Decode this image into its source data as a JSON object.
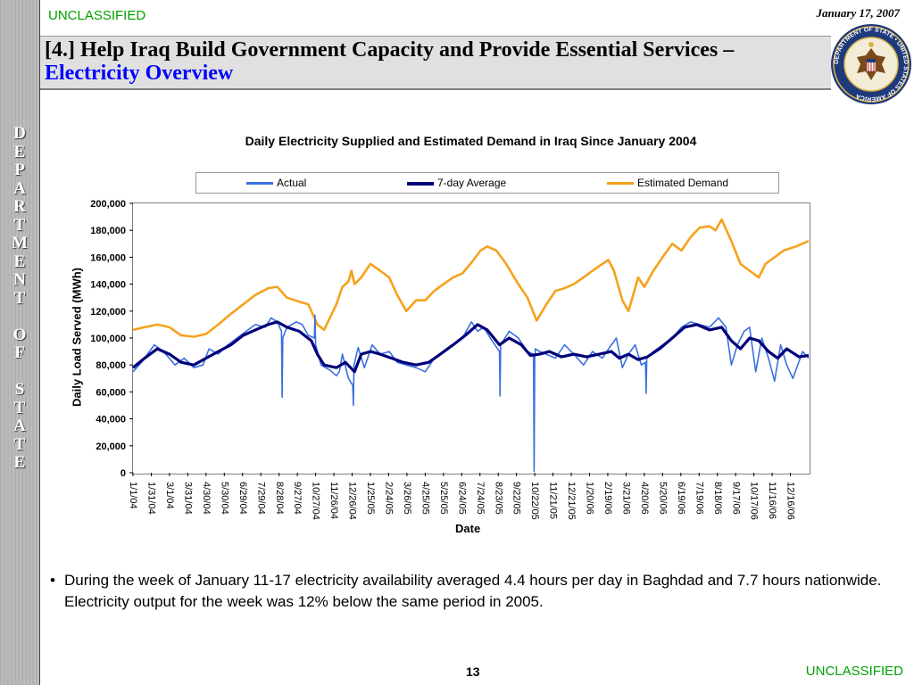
{
  "header": {
    "classification": "UNCLASSIFIED",
    "date": "January 17, 2007",
    "title_main": "[4.] Help Iraq Build Government Capacity and Provide Essential Services – ",
    "title_sub": "Electricity Overview"
  },
  "sidebar": {
    "letters": [
      "D",
      "E",
      "P",
      "A",
      "R",
      "T",
      "M",
      "E",
      "N",
      "T",
      "",
      "O",
      "F",
      "",
      "S",
      "T",
      "A",
      "T",
      "E"
    ]
  },
  "seal": {
    "ring_text": "DEPARTMENT OF STATE • UNITED STATES OF AMERICA"
  },
  "bullet": {
    "marker": "•",
    "text": "During the week of January 11-17 electricity availability averaged 4.4 hours per day in Baghdad and 7.7 hours nationwide.  Electricity output for the week was 12% below the same period in 2005."
  },
  "footer": {
    "page_number": "13",
    "classification": "UNCLASSIFIED"
  },
  "colors": {
    "actual": "#3b6fe0",
    "avg7": "#00007a",
    "demand": "#f5a21d",
    "classification": "#00a000",
    "title_sub": "#0000ff"
  },
  "chart_data": {
    "type": "line",
    "title": "Daily Electricity Supplied and Estimated Demand in Iraq Since January 2004",
    "xlabel": "Date",
    "ylabel": "Daily Load Served (MWh)",
    "ylim": [
      0,
      200000
    ],
    "yticks": [
      "0",
      "20,000",
      "40,000",
      "60,000",
      "80,000",
      "100,000",
      "120,000",
      "140,000",
      "160,000",
      "180,000",
      "200,000"
    ],
    "ytick_values": [
      0,
      20000,
      40000,
      60000,
      80000,
      100000,
      120000,
      140000,
      160000,
      180000,
      200000
    ],
    "x_start": "2004-01-01",
    "x_end": "2007-01-15",
    "xticks": [
      "1/1/04",
      "1/31/04",
      "3/1/04",
      "3/31/04",
      "4/30/04",
      "5/30/04",
      "6/29/04",
      "7/29/04",
      "8/28/04",
      "9/27/04",
      "10/27/04",
      "11/26/04",
      "12/26/04",
      "1/25/05",
      "2/24/05",
      "3/26/05",
      "4/25/05",
      "5/25/05",
      "6/24/05",
      "7/24/05",
      "8/23/05",
      "9/22/05",
      "10/22/05",
      "11/21/05",
      "12/21/05",
      "1/20/06",
      "2/19/06",
      "3/21/06",
      "4/20/06",
      "5/20/06",
      "6/19/06",
      "7/19/06",
      "8/18/06",
      "9/17/06",
      "10/17/06",
      "11/16/06",
      "12/16/06"
    ],
    "xtick_dates": [
      "2004-01-01",
      "2004-01-31",
      "2004-03-01",
      "2004-03-31",
      "2004-04-30",
      "2004-05-30",
      "2004-06-29",
      "2004-07-29",
      "2004-08-28",
      "2004-09-27",
      "2004-10-27",
      "2004-11-26",
      "2004-12-26",
      "2005-01-25",
      "2005-02-24",
      "2005-03-26",
      "2005-04-25",
      "2005-05-25",
      "2005-06-24",
      "2005-07-24",
      "2005-08-23",
      "2005-09-22",
      "2005-10-22",
      "2005-11-21",
      "2005-12-21",
      "2006-01-20",
      "2006-02-19",
      "2006-03-21",
      "2006-04-20",
      "2006-05-20",
      "2006-06-19",
      "2006-07-19",
      "2006-08-18",
      "2006-09-17",
      "2006-10-17",
      "2006-11-16",
      "2006-12-16"
    ],
    "grid": false,
    "legend": "top",
    "series": [
      {
        "name": "Actual",
        "color": "#3b6fe0",
        "x": [
          "2004-01-01",
          "2004-01-15",
          "2004-02-05",
          "2004-02-20",
          "2004-03-10",
          "2004-03-25",
          "2004-04-10",
          "2004-04-25",
          "2004-05-05",
          "2004-05-20",
          "2004-06-05",
          "2004-06-20",
          "2004-07-05",
          "2004-07-20",
          "2004-08-05",
          "2004-08-15",
          "2004-08-25",
          "2004-09-01",
          "2004-09-02",
          "2004-09-03",
          "2004-09-10",
          "2004-09-25",
          "2004-10-05",
          "2004-10-15",
          "2004-10-25",
          "2004-10-26",
          "2004-10-27",
          "2004-11-05",
          "2004-11-20",
          "2004-11-30",
          "2004-12-05",
          "2004-12-10",
          "2004-12-20",
          "2004-12-27",
          "2004-12-28",
          "2004-12-29",
          "2005-01-05",
          "2005-01-15",
          "2005-01-28",
          "2005-02-10",
          "2005-02-25",
          "2005-03-10",
          "2005-03-25",
          "2005-04-10",
          "2005-04-25",
          "2005-05-10",
          "2005-05-25",
          "2005-06-10",
          "2005-06-25",
          "2005-07-10",
          "2005-07-20",
          "2005-07-30",
          "2005-08-10",
          "2005-08-25",
          "2005-08-26",
          "2005-08-27",
          "2005-09-10",
          "2005-09-25",
          "2005-10-10",
          "2005-10-20",
          "2005-10-21",
          "2005-10-22",
          "2005-10-23",
          "2005-10-30",
          "2005-11-10",
          "2005-11-25",
          "2005-12-10",
          "2005-12-25",
          "2006-01-10",
          "2006-01-25",
          "2006-02-10",
          "2006-02-25",
          "2006-03-05",
          "2006-03-15",
          "2006-03-25",
          "2006-04-05",
          "2006-04-15",
          "2006-04-22",
          "2006-04-23",
          "2006-04-24",
          "2006-05-05",
          "2006-05-20",
          "2006-06-05",
          "2006-06-20",
          "2006-07-05",
          "2006-07-20",
          "2006-08-05",
          "2006-08-20",
          "2006-09-01",
          "2006-09-10",
          "2006-09-20",
          "2006-10-01",
          "2006-10-10",
          "2006-10-20",
          "2006-10-30",
          "2006-11-10",
          "2006-11-20",
          "2006-11-30",
          "2006-12-10",
          "2006-12-20",
          "2007-01-05",
          "2007-01-15"
        ],
        "values": [
          75000,
          82000,
          95000,
          90000,
          80000,
          85000,
          78000,
          80000,
          92000,
          88000,
          95000,
          100000,
          105000,
          110000,
          108000,
          115000,
          112000,
          105000,
          56000,
          100000,
          108000,
          112000,
          110000,
          102000,
          100000,
          117000,
          95000,
          80000,
          76000,
          72000,
          75000,
          88000,
          70000,
          65000,
          50000,
          80000,
          93000,
          78000,
          95000,
          88000,
          90000,
          82000,
          80000,
          78000,
          75000,
          85000,
          90000,
          95000,
          100000,
          112000,
          105000,
          108000,
          100000,
          90000,
          57000,
          95000,
          105000,
          100000,
          90000,
          88000,
          1000,
          85000,
          92000,
          90000,
          88000,
          85000,
          95000,
          88000,
          80000,
          90000,
          85000,
          95000,
          100000,
          78000,
          88000,
          95000,
          80000,
          82000,
          59000,
          85000,
          90000,
          95000,
          100000,
          108000,
          112000,
          110000,
          108000,
          115000,
          108000,
          80000,
          95000,
          105000,
          108000,
          75000,
          100000,
          85000,
          68000,
          95000,
          80000,
          70000,
          90000,
          85000
        ]
      },
      {
        "name": "7-day Average",
        "color": "#00007a",
        "x": [
          "2004-01-01",
          "2004-01-20",
          "2004-02-10",
          "2004-03-01",
          "2004-03-20",
          "2004-04-10",
          "2004-04-30",
          "2004-05-20",
          "2004-06-10",
          "2004-06-30",
          "2004-07-20",
          "2004-08-10",
          "2004-08-25",
          "2004-09-10",
          "2004-09-30",
          "2004-10-20",
          "2004-10-30",
          "2004-11-10",
          "2004-11-30",
          "2004-12-15",
          "2004-12-30",
          "2005-01-10",
          "2005-01-25",
          "2005-02-10",
          "2005-03-01",
          "2005-03-20",
          "2005-04-10",
          "2005-05-01",
          "2005-05-20",
          "2005-06-10",
          "2005-06-30",
          "2005-07-20",
          "2005-08-05",
          "2005-08-25",
          "2005-09-10",
          "2005-09-30",
          "2005-10-15",
          "2005-10-30",
          "2005-11-15",
          "2005-12-05",
          "2005-12-25",
          "2006-01-15",
          "2006-02-05",
          "2006-02-25",
          "2006-03-10",
          "2006-03-25",
          "2006-04-10",
          "2006-04-25",
          "2006-05-15",
          "2006-06-05",
          "2006-06-25",
          "2006-07-15",
          "2006-08-05",
          "2006-08-25",
          "2006-09-10",
          "2006-09-25",
          "2006-10-10",
          "2006-10-25",
          "2006-11-10",
          "2006-11-25",
          "2006-12-10",
          "2006-12-30",
          "2007-01-15"
        ],
        "values": [
          78000,
          85000,
          92000,
          88000,
          82000,
          80000,
          85000,
          90000,
          95000,
          102000,
          106000,
          110000,
          112000,
          108000,
          105000,
          98000,
          88000,
          80000,
          78000,
          82000,
          75000,
          88000,
          90000,
          88000,
          85000,
          82000,
          80000,
          82000,
          88000,
          95000,
          102000,
          110000,
          106000,
          95000,
          100000,
          95000,
          87000,
          88000,
          90000,
          86000,
          88000,
          86000,
          88000,
          90000,
          85000,
          88000,
          84000,
          86000,
          92000,
          100000,
          108000,
          110000,
          106000,
          108000,
          98000,
          92000,
          100000,
          98000,
          90000,
          85000,
          92000,
          86000,
          87000
        ]
      },
      {
        "name": "Estimated Demand",
        "color": "#f5a21d",
        "x": [
          "2004-01-01",
          "2004-01-20",
          "2004-02-10",
          "2004-03-01",
          "2004-03-20",
          "2004-04-10",
          "2004-04-30",
          "2004-05-20",
          "2004-06-10",
          "2004-06-30",
          "2004-07-20",
          "2004-08-10",
          "2004-08-25",
          "2004-09-10",
          "2004-09-30",
          "2004-10-15",
          "2004-10-30",
          "2004-11-10",
          "2004-11-30",
          "2004-12-10",
          "2004-12-20",
          "2004-12-25",
          "2004-12-30",
          "2005-01-10",
          "2005-01-25",
          "2005-02-10",
          "2005-02-25",
          "2005-03-10",
          "2005-03-25",
          "2005-04-10",
          "2005-04-25",
          "2005-05-10",
          "2005-05-25",
          "2005-06-10",
          "2005-06-25",
          "2005-07-10",
          "2005-07-25",
          "2005-08-05",
          "2005-08-20",
          "2005-09-05",
          "2005-09-25",
          "2005-10-10",
          "2005-10-25",
          "2005-11-10",
          "2005-11-25",
          "2005-12-10",
          "2005-12-25",
          "2006-01-10",
          "2006-01-25",
          "2006-02-10",
          "2006-02-20",
          "2006-03-01",
          "2006-03-15",
          "2006-03-25",
          "2006-04-10",
          "2006-04-20",
          "2006-05-05",
          "2006-05-20",
          "2006-06-05",
          "2006-06-20",
          "2006-07-05",
          "2006-07-20",
          "2006-08-05",
          "2006-08-15",
          "2006-08-25",
          "2006-09-10",
          "2006-09-25",
          "2006-10-10",
          "2006-10-25",
          "2006-11-05",
          "2006-11-20",
          "2006-12-05",
          "2006-12-25",
          "2007-01-15"
        ],
        "values": [
          106000,
          108000,
          110000,
          108000,
          102000,
          101000,
          103000,
          110000,
          118000,
          125000,
          132000,
          137000,
          138000,
          130000,
          127000,
          125000,
          110000,
          106000,
          125000,
          138000,
          142000,
          150000,
          140000,
          145000,
          155000,
          150000,
          145000,
          132000,
          120000,
          128000,
          128000,
          135000,
          140000,
          145000,
          148000,
          156000,
          165000,
          168000,
          165000,
          155000,
          140000,
          130000,
          113000,
          125000,
          135000,
          137000,
          140000,
          145000,
          150000,
          155000,
          158000,
          150000,
          128000,
          120000,
          145000,
          138000,
          150000,
          160000,
          170000,
          165000,
          175000,
          182000,
          183000,
          180000,
          188000,
          172000,
          155000,
          150000,
          145000,
          155000,
          160000,
          165000,
          168000,
          172000
        ]
      }
    ]
  }
}
